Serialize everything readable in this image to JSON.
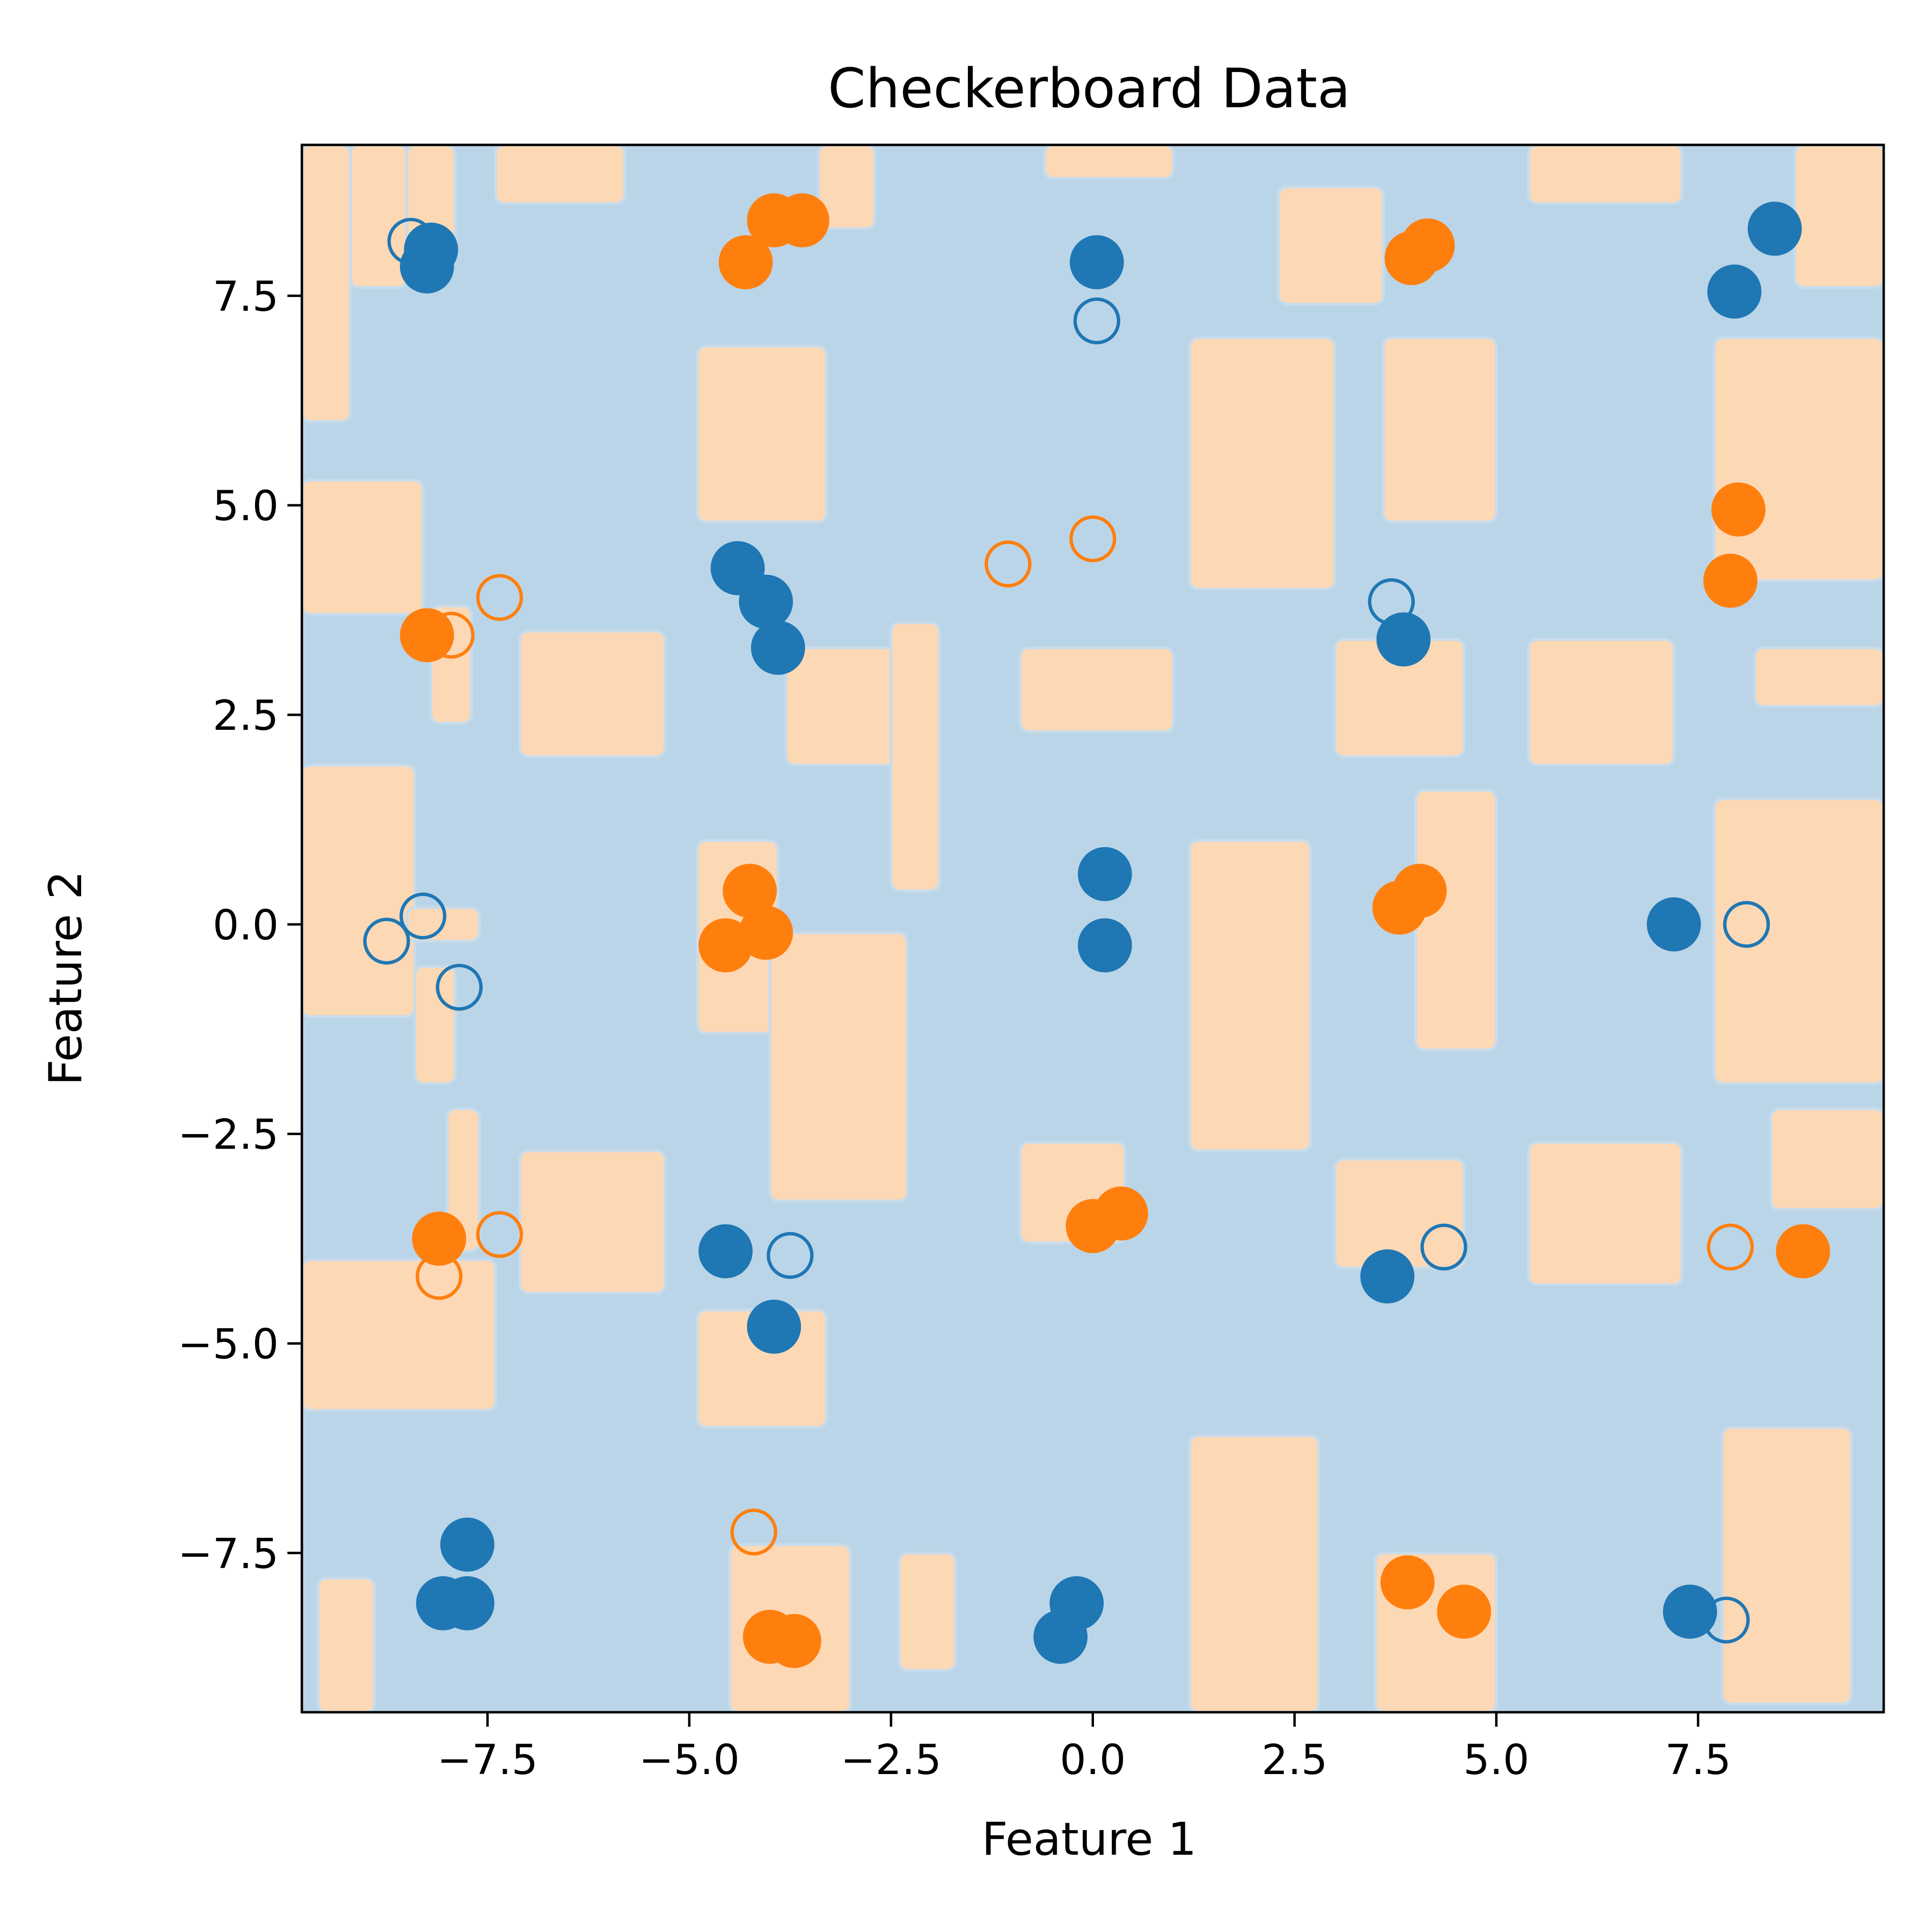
{
  "chart_data": {
    "type": "scatter",
    "title": "Checkerboard Data",
    "xlabel": "Feature 1",
    "ylabel": "Feature 2",
    "xlim": [
      -9.8,
      9.8
    ],
    "ylim": [
      -9.4,
      9.3
    ],
    "xticks": [
      -7.5,
      -5.0,
      -2.5,
      0.0,
      2.5,
      5.0,
      7.5
    ],
    "xtick_labels": [
      "−7.5",
      "−5.0",
      "−2.5",
      "0.0",
      "2.5",
      "5.0",
      "7.5"
    ],
    "yticks": [
      -7.5,
      -5.0,
      -2.5,
      0.0,
      2.5,
      5.0,
      7.5
    ],
    "ytick_labels": [
      "−7.5",
      "−5.0",
      "−2.5",
      "0.0",
      "2.5",
      "5.0",
      "7.5"
    ],
    "grid": false,
    "colors": {
      "class0": "#1f77b4",
      "class1": "#ff7f0e",
      "region0": "#bad5e8",
      "region1": "#fdd8b5"
    },
    "decision_regions": {
      "class1_regions": [
        [
          -9.8,
          6.0,
          -9.2,
          9.3
        ],
        [
          -9.2,
          7.6,
          -8.5,
          9.3
        ],
        [
          -8.5,
          8.1,
          -7.9,
          9.3
        ],
        [
          -9.8,
          3.7,
          -8.3,
          5.3
        ],
        [
          -9.8,
          -1.1,
          -8.4,
          1.9
        ],
        [
          -8.5,
          -0.2,
          -7.6,
          0.2
        ],
        [
          -9.8,
          -5.8,
          -7.4,
          -4.0
        ],
        [
          -9.6,
          -9.4,
          -8.9,
          -7.8
        ],
        [
          -8.4,
          -1.9,
          -7.9,
          -0.5
        ],
        [
          -8.2,
          2.4,
          -7.7,
          3.8
        ],
        [
          -8.0,
          -3.9,
          -7.6,
          -2.2
        ],
        [
          -7.4,
          8.6,
          -5.8,
          9.3
        ],
        [
          -7.1,
          2.0,
          -5.3,
          3.5
        ],
        [
          -7.1,
          -4.4,
          -5.3,
          -2.7
        ],
        [
          -4.9,
          4.8,
          -3.3,
          6.9
        ],
        [
          -4.9,
          -6.0,
          -3.3,
          -4.6
        ],
        [
          -4.9,
          -1.3,
          -3.9,
          1.0
        ],
        [
          -4.0,
          -3.3,
          -2.3,
          -0.1
        ],
        [
          -4.5,
          -9.4,
          -3.0,
          -7.4
        ],
        [
          -3.8,
          1.9,
          -2.3,
          3.3
        ],
        [
          -3.4,
          8.3,
          -2.7,
          9.3
        ],
        [
          -2.5,
          0.4,
          -1.9,
          3.6
        ],
        [
          -2.4,
          -8.9,
          -1.7,
          -7.5
        ],
        [
          -0.6,
          8.9,
          1.0,
          9.3
        ],
        [
          -0.9,
          2.3,
          1.0,
          3.3
        ],
        [
          -0.9,
          -3.8,
          0.4,
          -2.6
        ],
        [
          1.2,
          4.0,
          3.0,
          7.0
        ],
        [
          1.2,
          -2.7,
          2.7,
          1.0
        ],
        [
          1.2,
          -9.4,
          2.8,
          -6.1
        ],
        [
          2.3,
          7.4,
          3.6,
          8.8
        ],
        [
          3.0,
          -4.1,
          4.6,
          -2.8
        ],
        [
          3.0,
          2.0,
          4.6,
          3.4
        ],
        [
          4.0,
          -1.5,
          5.0,
          1.6
        ],
        [
          3.5,
          -9.4,
          5.0,
          -7.5
        ],
        [
          3.6,
          4.8,
          5.0,
          7.0
        ],
        [
          5.4,
          1.9,
          7.2,
          3.4
        ],
        [
          5.4,
          -4.3,
          7.3,
          -2.6
        ],
        [
          5.4,
          8.6,
          7.3,
          9.3
        ],
        [
          7.7,
          4.1,
          9.8,
          7.0
        ],
        [
          7.7,
          -1.9,
          9.8,
          1.5
        ],
        [
          7.8,
          -9.3,
          9.4,
          -6.0
        ],
        [
          8.7,
          7.6,
          9.8,
          9.3
        ],
        [
          8.4,
          -3.4,
          9.8,
          -2.2
        ],
        [
          8.2,
          2.6,
          9.8,
          3.3
        ]
      ]
    },
    "series": [
      {
        "class": 0,
        "marker": "filled",
        "points": [
          [
            -8.2,
            8.05
          ],
          [
            -8.25,
            7.85
          ],
          [
            8.45,
            8.3
          ],
          [
            7.95,
            7.55
          ],
          [
            0.05,
            7.9
          ],
          [
            -4.4,
            4.25
          ],
          [
            -4.05,
            3.85
          ],
          [
            -3.9,
            3.3
          ],
          [
            3.85,
            3.4
          ],
          [
            0.15,
            0.6
          ],
          [
            0.15,
            -0.25
          ],
          [
            7.2,
            0.0
          ],
          [
            -4.55,
            -3.9
          ],
          [
            -3.95,
            -4.8
          ],
          [
            3.65,
            -4.2
          ],
          [
            -7.75,
            -7.4
          ],
          [
            -8.05,
            -8.1
          ],
          [
            -7.75,
            -8.1
          ],
          [
            -0.2,
            -8.1
          ],
          [
            -0.4,
            -8.5
          ],
          [
            7.4,
            -8.2
          ]
        ]
      },
      {
        "class": 0,
        "marker": "hollow",
        "points": [
          [
            -8.45,
            8.15
          ],
          [
            0.05,
            7.2
          ],
          [
            3.7,
            3.85
          ],
          [
            -8.3,
            0.1
          ],
          [
            -8.75,
            -0.2
          ],
          [
            -7.85,
            -0.75
          ],
          [
            8.1,
            0.0
          ],
          [
            -3.75,
            -3.95
          ],
          [
            4.35,
            -3.85
          ],
          [
            7.85,
            -8.3
          ]
        ]
      },
      {
        "class": 1,
        "marker": "filled",
        "points": [
          [
            -3.95,
            8.4
          ],
          [
            -3.6,
            8.4
          ],
          [
            -4.3,
            7.9
          ],
          [
            4.15,
            8.1
          ],
          [
            3.95,
            7.95
          ],
          [
            8.0,
            4.95
          ],
          [
            7.9,
            4.1
          ],
          [
            -8.25,
            3.45
          ],
          [
            -4.25,
            0.4
          ],
          [
            -4.05,
            -0.1
          ],
          [
            -4.55,
            -0.25
          ],
          [
            3.8,
            0.2
          ],
          [
            4.05,
            0.4
          ],
          [
            -8.1,
            -3.75
          ],
          [
            0.0,
            -3.6
          ],
          [
            0.35,
            -3.45
          ],
          [
            8.8,
            -3.9
          ],
          [
            -4.0,
            -8.5
          ],
          [
            -3.7,
            -8.55
          ],
          [
            3.9,
            -7.85
          ],
          [
            4.6,
            -8.2
          ]
        ]
      },
      {
        "class": 1,
        "marker": "hollow",
        "points": [
          [
            -7.35,
            3.9
          ],
          [
            -7.95,
            3.45
          ],
          [
            -1.05,
            4.3
          ],
          [
            0.0,
            4.6
          ],
          [
            -7.35,
            -3.7
          ],
          [
            -8.1,
            -4.2
          ],
          [
            7.9,
            -3.85
          ],
          [
            -4.2,
            -7.25
          ]
        ]
      }
    ]
  }
}
